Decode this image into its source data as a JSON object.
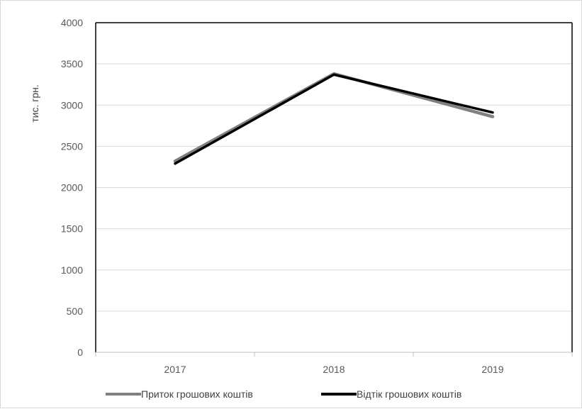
{
  "chart_data": {
    "type": "line",
    "title": "",
    "xlabel": "",
    "ylabel": "тис. грн.",
    "categories": [
      "2017",
      "2018",
      "2019"
    ],
    "ylim": [
      0,
      4000
    ],
    "yticks": [
      0,
      500,
      1000,
      1500,
      2000,
      2500,
      3000,
      3500,
      4000
    ],
    "grid": true,
    "legend_position": "bottom",
    "series": [
      {
        "name": "Приток грошових коштів",
        "values": [
          2320,
          3380,
          2860
        ],
        "color": "#808080"
      },
      {
        "name": "Відтік грошових коштів",
        "values": [
          2290,
          3370,
          2910
        ],
        "color": "#000000"
      }
    ]
  }
}
